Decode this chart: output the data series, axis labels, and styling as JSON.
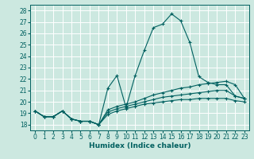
{
  "xlabel": "Humidex (Indice chaleur)",
  "xlim": [
    -0.5,
    23.5
  ],
  "ylim": [
    17.5,
    28.5
  ],
  "yticks": [
    18,
    19,
    20,
    21,
    22,
    23,
    24,
    25,
    26,
    27,
    28
  ],
  "xticks": [
    0,
    1,
    2,
    3,
    4,
    5,
    6,
    7,
    8,
    9,
    10,
    11,
    12,
    13,
    14,
    15,
    16,
    17,
    18,
    19,
    20,
    21,
    22,
    23
  ],
  "bg_color": "#cce8e0",
  "grid_color": "#ffffff",
  "line_color": "#006060",
  "lines": [
    {
      "x": [
        0,
        1,
        2,
        3,
        4,
        5,
        6,
        7,
        8,
        9,
        10,
        11,
        12,
        13,
        14,
        15,
        16,
        17,
        18,
        19,
        20,
        21,
        22,
        23
      ],
      "y": [
        19.2,
        18.7,
        18.7,
        19.2,
        18.5,
        18.3,
        18.3,
        18.0,
        21.2,
        22.3,
        19.5,
        22.3,
        24.5,
        26.5,
        26.8,
        27.7,
        27.1,
        25.2,
        22.2,
        21.7,
        21.5,
        21.5,
        20.5,
        20.3
      ]
    },
    {
      "x": [
        0,
        1,
        2,
        3,
        4,
        5,
        6,
        7,
        8,
        9,
        10,
        11,
        12,
        13,
        14,
        15,
        16,
        17,
        18,
        19,
        20,
        21,
        22,
        23
      ],
      "y": [
        19.2,
        18.7,
        18.7,
        19.2,
        18.5,
        18.3,
        18.3,
        18.0,
        19.3,
        19.6,
        19.8,
        20.0,
        20.3,
        20.6,
        20.8,
        21.0,
        21.2,
        21.3,
        21.5,
        21.6,
        21.7,
        21.8,
        21.5,
        20.3
      ]
    },
    {
      "x": [
        0,
        1,
        2,
        3,
        4,
        5,
        6,
        7,
        8,
        9,
        10,
        11,
        12,
        13,
        14,
        15,
        16,
        17,
        18,
        19,
        20,
        21,
        22,
        23
      ],
      "y": [
        19.2,
        18.7,
        18.7,
        19.2,
        18.5,
        18.3,
        18.3,
        18.0,
        19.1,
        19.4,
        19.6,
        19.8,
        20.0,
        20.2,
        20.4,
        20.5,
        20.6,
        20.7,
        20.8,
        20.9,
        21.0,
        21.0,
        20.5,
        20.3
      ]
    },
    {
      "x": [
        0,
        1,
        2,
        3,
        4,
        5,
        6,
        7,
        8,
        9,
        10,
        11,
        12,
        13,
        14,
        15,
        16,
        17,
        18,
        19,
        20,
        21,
        22,
        23
      ],
      "y": [
        19.2,
        18.7,
        18.7,
        19.2,
        18.5,
        18.3,
        18.3,
        18.0,
        18.9,
        19.2,
        19.4,
        19.6,
        19.8,
        19.9,
        20.0,
        20.1,
        20.2,
        20.2,
        20.3,
        20.3,
        20.3,
        20.3,
        20.1,
        20.0
      ]
    }
  ]
}
